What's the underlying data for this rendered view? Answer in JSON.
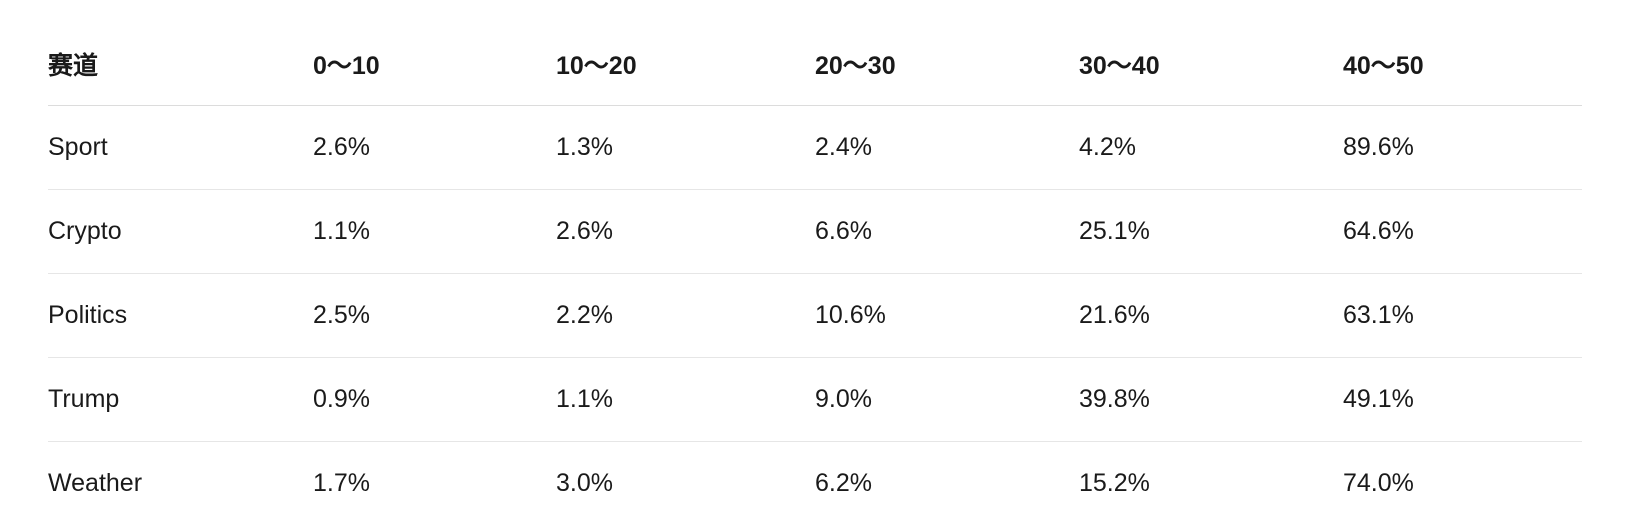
{
  "table": {
    "header": [
      "赛道",
      "0～10",
      "10～20",
      "20～30",
      "30～40",
      "40～50"
    ],
    "rows": [
      [
        "Sport",
        "2.6%",
        "1.3%",
        "2.4%",
        "4.2%",
        "89.6%"
      ],
      [
        "Crypto",
        "1.1%",
        "2.6%",
        "6.6%",
        "25.1%",
        "64.6%"
      ],
      [
        "Politics",
        "2.5%",
        "2.2%",
        "10.6%",
        "21.6%",
        "63.1%"
      ],
      [
        "Trump",
        "0.9%",
        "1.1%",
        "9.0%",
        "39.8%",
        "49.1%"
      ],
      [
        "Weather",
        "1.7%",
        "3.0%",
        "6.2%",
        "15.2%",
        "74.0%"
      ]
    ]
  }
}
